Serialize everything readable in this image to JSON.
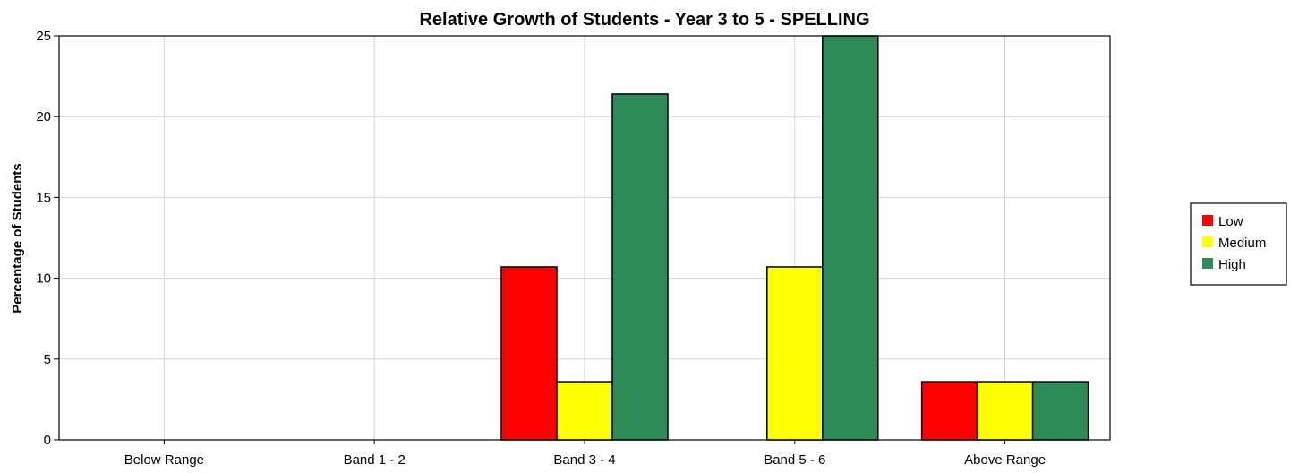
{
  "chart_data": {
    "type": "bar",
    "title": "Relative Growth of Students - Year 3 to 5 - SPELLING",
    "xlabel": "",
    "ylabel": "Percentage of Students",
    "ylim": [
      0,
      25
    ],
    "yticks": [
      0,
      5,
      10,
      15,
      20,
      25
    ],
    "grid": true,
    "legend_position": "right",
    "categories": [
      "Below Range",
      "Band 1 - 2",
      "Band 3 - 4",
      "Band 5 - 6",
      "Above Range"
    ],
    "series": [
      {
        "name": "Low",
        "color": "#ff0000",
        "values": [
          0,
          0,
          10.7,
          0,
          3.6
        ]
      },
      {
        "name": "Medium",
        "color": "#ffff00",
        "values": [
          0,
          0,
          3.6,
          10.7,
          3.6
        ]
      },
      {
        "name": "High",
        "color": "#2e8b57",
        "values": [
          0,
          0,
          21.4,
          25,
          3.6
        ]
      }
    ]
  }
}
